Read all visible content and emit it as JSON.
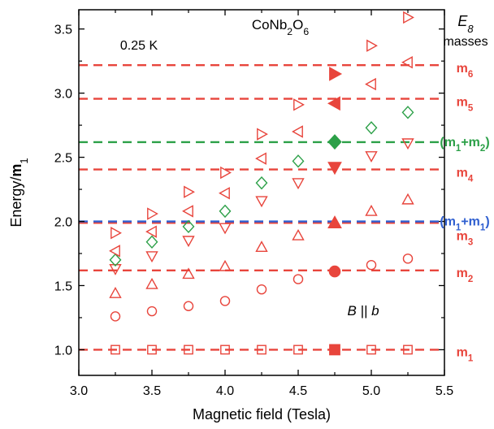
{
  "chart_data": {
    "type": "scatter",
    "title": "CoNb2O6",
    "temperature_label": "0.25 K",
    "field_annotation": "B || b",
    "legend_title": [
      "E8",
      "masses"
    ],
    "xlabel": "Magnetic field (Tesla)",
    "ylabel": "Energy/m1",
    "xlim": [
      3.0,
      5.5
    ],
    "ylim": [
      0.8,
      3.65
    ],
    "x_ticks": [
      3.0,
      3.5,
      4.0,
      4.5,
      5.0,
      5.5
    ],
    "x_tick_labels": [
      "3.0",
      "3.5",
      "4.0",
      "4.5",
      "5.0",
      "5.5"
    ],
    "y_ticks": [
      1.0,
      1.5,
      2.0,
      2.5,
      3.0,
      3.5
    ],
    "y_tick_labels": [
      "1.0",
      "1.5",
      "2.0",
      "2.5",
      "3.0",
      "3.5"
    ],
    "grid": false,
    "colors": {
      "red": "#e8453c",
      "green": "#2ca048",
      "blue": "#2f5fd0",
      "axis": "#000000"
    },
    "reference_lines": [
      {
        "label": "m1",
        "y": 1.0,
        "color": "#e8453c"
      },
      {
        "label": "m2",
        "y": 1.618,
        "color": "#e8453c"
      },
      {
        "label": "m3",
        "y": 1.989,
        "color": "#e8453c"
      },
      {
        "label": "(m1+m1)",
        "y": 2.0,
        "color": "#2f5fd0"
      },
      {
        "label": "m4",
        "y": 2.405,
        "color": "#e8453c"
      },
      {
        "label": "(m1+m2)",
        "y": 2.618,
        "color": "#2ca048"
      },
      {
        "label": "m5",
        "y": 2.956,
        "color": "#e8453c"
      },
      {
        "label": "m6",
        "y": 3.218,
        "color": "#e8453c"
      }
    ],
    "series": [
      {
        "marker": "square",
        "filled": false,
        "color": "#e8453c",
        "points": [
          [
            3.25,
            1.0
          ],
          [
            3.5,
            1.0
          ],
          [
            3.75,
            1.0
          ],
          [
            4.0,
            1.0
          ],
          [
            4.25,
            1.0
          ],
          [
            4.5,
            1.0
          ],
          [
            5.0,
            1.0
          ],
          [
            5.25,
            1.0
          ]
        ]
      },
      {
        "marker": "circle",
        "filled": false,
        "color": "#e8453c",
        "points": [
          [
            3.25,
            1.26
          ],
          [
            3.5,
            1.3
          ],
          [
            3.75,
            1.34
          ],
          [
            4.0,
            1.38
          ],
          [
            4.25,
            1.47
          ],
          [
            4.5,
            1.55
          ],
          [
            5.0,
            1.66
          ],
          [
            5.25,
            1.71
          ]
        ]
      },
      {
        "marker": "triangle-up",
        "filled": false,
        "color": "#e8453c",
        "points": [
          [
            3.25,
            1.44
          ],
          [
            3.5,
            1.51
          ],
          [
            3.75,
            1.59
          ],
          [
            4.0,
            1.65
          ],
          [
            4.25,
            1.8
          ],
          [
            4.5,
            1.89
          ],
          [
            5.0,
            2.08
          ],
          [
            5.25,
            2.17
          ]
        ]
      },
      {
        "marker": "triangle-down",
        "filled": false,
        "color": "#e8453c",
        "points": [
          [
            3.25,
            1.63
          ],
          [
            3.5,
            1.73
          ],
          [
            3.75,
            1.85
          ],
          [
            4.0,
            1.95
          ],
          [
            4.25,
            2.16
          ],
          [
            4.5,
            2.3
          ],
          [
            5.0,
            2.51
          ],
          [
            5.25,
            2.61
          ]
        ]
      },
      {
        "marker": "diamond",
        "filled": false,
        "color": "#2ca048",
        "points": [
          [
            3.25,
            1.7
          ],
          [
            3.5,
            1.84
          ],
          [
            3.75,
            1.96
          ],
          [
            4.0,
            2.08
          ],
          [
            4.25,
            2.3
          ],
          [
            4.5,
            2.47
          ],
          [
            5.0,
            2.73
          ],
          [
            5.25,
            2.85
          ]
        ]
      },
      {
        "marker": "triangle-left",
        "filled": false,
        "color": "#e8453c",
        "points": [
          [
            3.25,
            1.77
          ],
          [
            3.5,
            1.92
          ],
          [
            3.75,
            2.08
          ],
          [
            4.0,
            2.22
          ],
          [
            4.25,
            2.49
          ],
          [
            4.5,
            2.7
          ],
          [
            5.0,
            3.07
          ],
          [
            5.25,
            3.24
          ]
        ]
      },
      {
        "marker": "triangle-right",
        "filled": false,
        "color": "#e8453c",
        "points": [
          [
            3.25,
            1.91
          ],
          [
            3.5,
            2.06
          ],
          [
            3.75,
            2.23
          ],
          [
            4.0,
            2.38
          ],
          [
            4.25,
            2.68
          ],
          [
            4.5,
            2.91
          ],
          [
            5.0,
            3.37
          ],
          [
            5.25,
            3.59
          ]
        ]
      },
      {
        "marker": "square",
        "filled": true,
        "color": "#e8453c",
        "points": [
          [
            4.75,
            1.0
          ]
        ]
      },
      {
        "marker": "circle",
        "filled": true,
        "color": "#e8453c",
        "points": [
          [
            4.75,
            1.61
          ]
        ]
      },
      {
        "marker": "triangle-up",
        "filled": true,
        "color": "#e8453c",
        "points": [
          [
            4.75,
            1.99
          ]
        ]
      },
      {
        "marker": "triangle-down",
        "filled": true,
        "color": "#e8453c",
        "points": [
          [
            4.75,
            2.42
          ]
        ]
      },
      {
        "marker": "diamond",
        "filled": true,
        "color": "#2ca048",
        "points": [
          [
            4.75,
            2.62
          ]
        ]
      },
      {
        "marker": "triangle-left",
        "filled": true,
        "color": "#e8453c",
        "points": [
          [
            4.75,
            2.92
          ]
        ]
      },
      {
        "marker": "triangle-right",
        "filled": true,
        "color": "#e8453c",
        "points": [
          [
            4.75,
            3.15
          ]
        ]
      }
    ]
  }
}
